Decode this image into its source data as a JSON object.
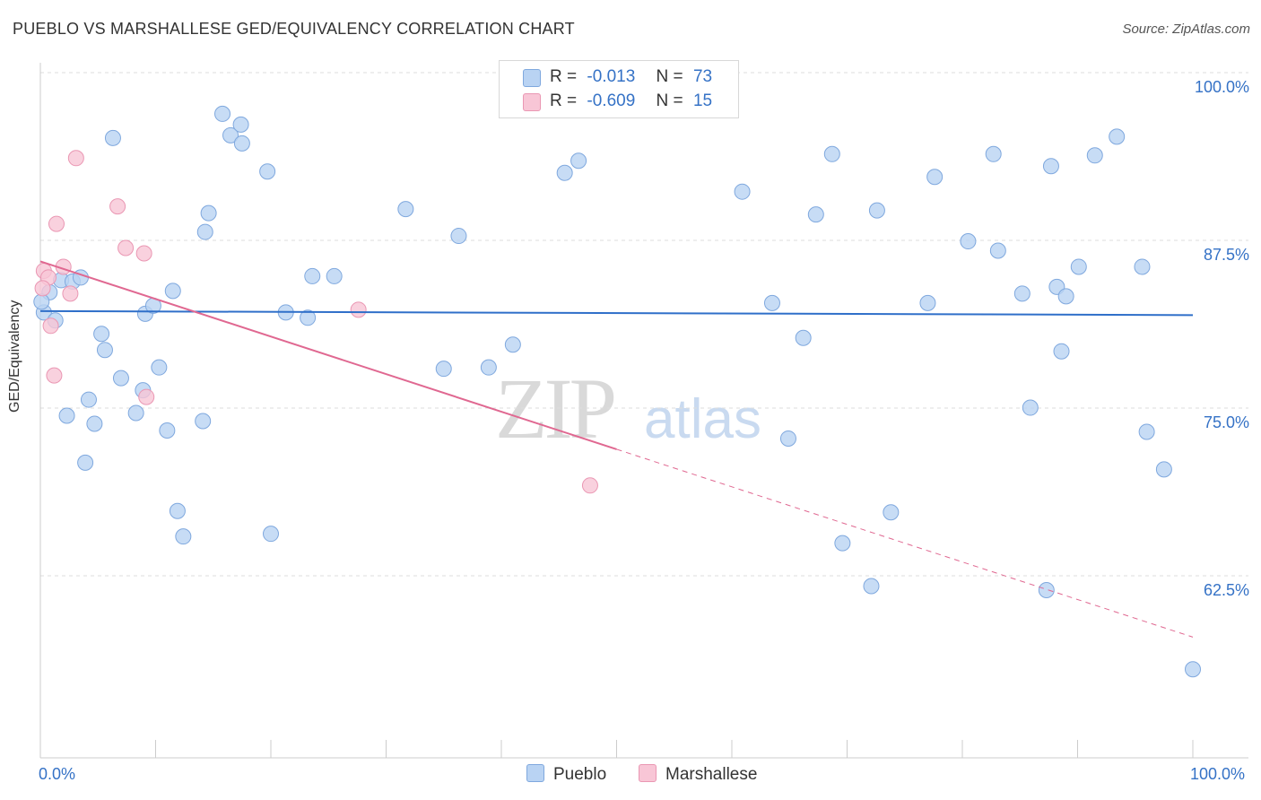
{
  "title": "PUEBLO VS MARSHALLESE GED/EQUIVALENCY CORRELATION CHART",
  "source": "Source: ZipAtlas.com",
  "watermark": {
    "zip": "ZIP",
    "atlas": "atlas"
  },
  "legend": {
    "r_label": "R =",
    "n_label": "N =",
    "pueblo": {
      "r": "-0.013",
      "n": "73"
    },
    "marshallese": {
      "r": "-0.609",
      "n": "15"
    }
  },
  "colors": {
    "pueblo_fill": "#b9d3f3",
    "pueblo_stroke": "#7fa8de",
    "pueblo_line": "#2f6fc9",
    "marshallese_fill": "#f8c6d6",
    "marshallese_stroke": "#ea97b3",
    "marshallese_line": "#e06891",
    "axis_text": "#3572c6",
    "grid": "#dddddd"
  },
  "chart_data": {
    "type": "scatter",
    "title": "PUEBLO VS MARSHALLESE GED/EQUIVALENCY CORRELATION CHART",
    "xlabel": "",
    "ylabel": "GED/Equivalency",
    "xlim": [
      0,
      100
    ],
    "ylim": [
      50,
      100
    ],
    "x_tick_labels": [
      "0.0%",
      "100.0%"
    ],
    "y_ticks": [
      62.5,
      75.0,
      87.5,
      100.0
    ],
    "y_tick_labels": [
      "62.5%",
      "75.0%",
      "87.5%",
      "100.0%"
    ],
    "grid": true,
    "legend_position": "bottom-center",
    "series": [
      {
        "name": "Pueblo",
        "trend": {
          "x": [
            0,
            100
          ],
          "y": [
            83.3,
            83.0
          ],
          "dashed_from": null
        },
        "points": [
          [
            0.3,
            83.2
          ],
          [
            0.8,
            84.7
          ],
          [
            1.3,
            82.6
          ],
          [
            1.8,
            85.6
          ],
          [
            2.3,
            75.5
          ],
          [
            2.8,
            85.5
          ],
          [
            3.5,
            85.8
          ],
          [
            3.9,
            72.0
          ],
          [
            4.2,
            76.7
          ],
          [
            4.7,
            74.9
          ],
          [
            5.3,
            81.6
          ],
          [
            5.6,
            80.4
          ],
          [
            6.3,
            96.2
          ],
          [
            7.0,
            78.3
          ],
          [
            8.3,
            75.7
          ],
          [
            8.9,
            77.4
          ],
          [
            9.1,
            83.1
          ],
          [
            9.8,
            83.7
          ],
          [
            10.3,
            79.1
          ],
          [
            11.0,
            74.4
          ],
          [
            11.5,
            84.8
          ],
          [
            11.9,
            68.4
          ],
          [
            12.4,
            66.5
          ],
          [
            14.1,
            75.1
          ],
          [
            14.3,
            89.2
          ],
          [
            14.6,
            90.6
          ],
          [
            15.8,
            98.0
          ],
          [
            16.5,
            96.4
          ],
          [
            17.4,
            97.2
          ],
          [
            17.5,
            95.8
          ],
          [
            19.7,
            93.7
          ],
          [
            20.0,
            66.7
          ],
          [
            21.3,
            83.2
          ],
          [
            23.2,
            82.8
          ],
          [
            23.6,
            85.9
          ],
          [
            25.5,
            85.9
          ],
          [
            31.7,
            90.9
          ],
          [
            35.0,
            79.0
          ],
          [
            36.3,
            88.9
          ],
          [
            38.9,
            79.1
          ],
          [
            41.0,
            80.8
          ],
          [
            45.5,
            93.6
          ],
          [
            46.7,
            94.5
          ],
          [
            60.9,
            92.2
          ],
          [
            63.5,
            83.9
          ],
          [
            64.9,
            73.8
          ],
          [
            66.2,
            81.3
          ],
          [
            67.3,
            90.5
          ],
          [
            68.7,
            95.0
          ],
          [
            69.6,
            66.0
          ],
          [
            72.1,
            62.8
          ],
          [
            72.6,
            90.8
          ],
          [
            73.8,
            68.3
          ],
          [
            77.0,
            83.9
          ],
          [
            77.6,
            93.3
          ],
          [
            80.5,
            88.5
          ],
          [
            82.7,
            95.0
          ],
          [
            83.1,
            87.8
          ],
          [
            85.2,
            84.6
          ],
          [
            85.9,
            76.1
          ],
          [
            87.3,
            62.5
          ],
          [
            87.7,
            94.1
          ],
          [
            88.2,
            85.1
          ],
          [
            88.6,
            80.3
          ],
          [
            89.0,
            84.4
          ],
          [
            90.1,
            86.6
          ],
          [
            91.5,
            94.9
          ],
          [
            93.4,
            96.3
          ],
          [
            95.6,
            86.6
          ],
          [
            96.0,
            74.3
          ],
          [
            97.5,
            71.5
          ],
          [
            100.0,
            56.6
          ],
          [
            0.1,
            84.0
          ]
        ]
      },
      {
        "name": "Marshallese",
        "trend": {
          "x": [
            0,
            100
          ],
          "y": [
            87.0,
            59.0
          ],
          "dashed_from": 50
        },
        "points": [
          [
            0.3,
            86.3
          ],
          [
            0.7,
            85.8
          ],
          [
            0.9,
            82.2
          ],
          [
            1.2,
            78.5
          ],
          [
            1.4,
            89.8
          ],
          [
            2.0,
            86.6
          ],
          [
            2.6,
            84.6
          ],
          [
            3.1,
            94.7
          ],
          [
            6.7,
            91.1
          ],
          [
            7.4,
            88.0
          ],
          [
            9.0,
            87.6
          ],
          [
            9.2,
            76.9
          ],
          [
            27.6,
            83.4
          ],
          [
            47.7,
            70.3
          ],
          [
            0.2,
            85.0
          ]
        ]
      }
    ]
  },
  "bottom_legend": {
    "pueblo": "Pueblo",
    "marshallese": "Marshallese"
  }
}
